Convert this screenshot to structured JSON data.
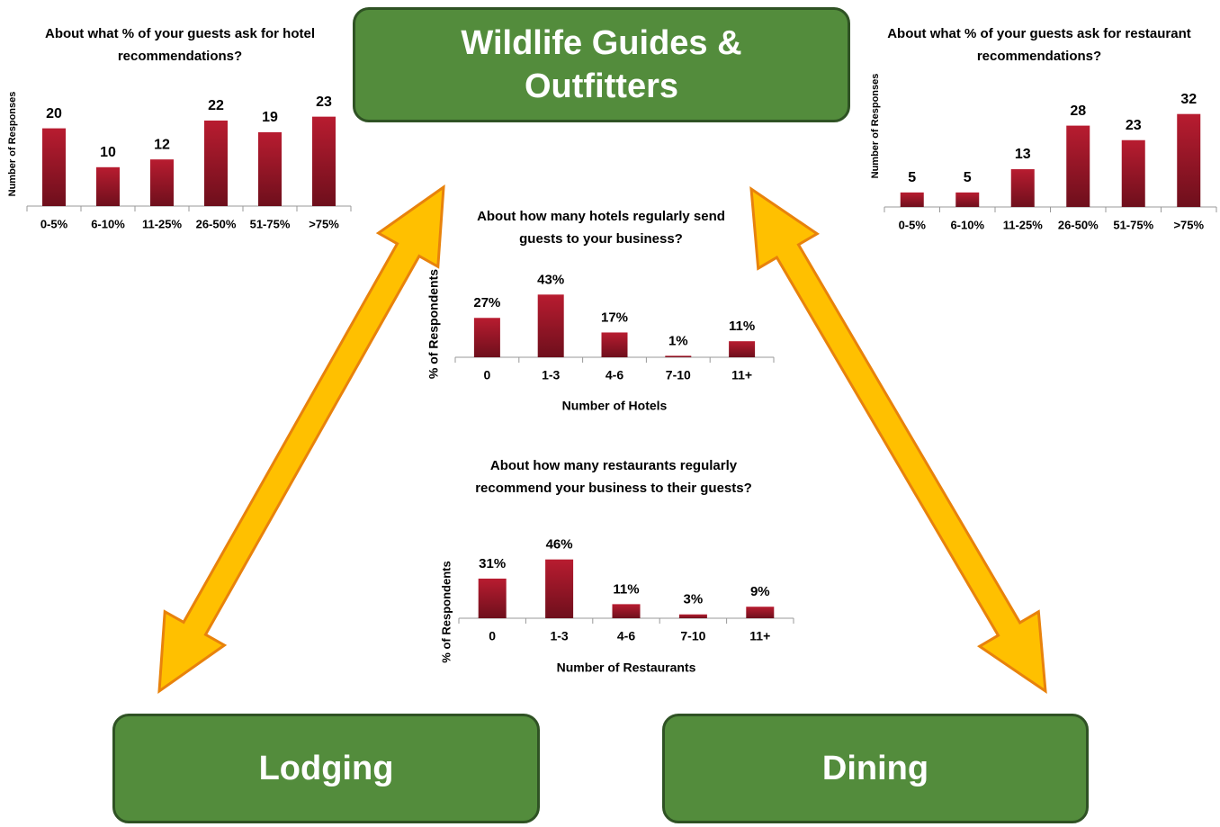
{
  "boxes": {
    "top": "Wildlife Guides & Outfitters",
    "left": "Lodging",
    "right": "Dining"
  },
  "chart_data": [
    {
      "type": "bar",
      "title": "About what % of your guests ask for hotel recommendations?",
      "y_label": "Number of Responses",
      "categories": [
        "0-5%",
        "6-10%",
        "11-25%",
        "26-50%",
        "51-75%",
        ">75%"
      ],
      "values": [
        20,
        10,
        12,
        22,
        19,
        23
      ],
      "ylim": [
        0,
        25
      ],
      "color": "#a01828"
    },
    {
      "type": "bar",
      "title": "About what % of your guests ask for restaurant recommendations?",
      "y_label": "Number of Responses",
      "categories": [
        "0-5%",
        "6-10%",
        "11-25%",
        "26-50%",
        "51-75%",
        ">75%"
      ],
      "values": [
        5,
        5,
        13,
        28,
        23,
        32
      ],
      "ylim": [
        0,
        35
      ],
      "color": "#a01828"
    },
    {
      "type": "bar",
      "title": "About how many hotels regularly send guests to your business?",
      "y_label": "% of Respondents",
      "x_label": "Number of Hotels",
      "categories": [
        "0",
        "1-3",
        "4-6",
        "7-10",
        "11+"
      ],
      "values": [
        27,
        43,
        17,
        1,
        11
      ],
      "value_labels": [
        "27%",
        "43%",
        "17%",
        "1%",
        "11%"
      ],
      "ylim": [
        0,
        50
      ],
      "color": "#a01828"
    },
    {
      "type": "bar",
      "title": "About how many restaurants regularly recommend your business to their guests?",
      "y_label": "% of Respondents",
      "x_label": "Number of Restaurants",
      "categories": [
        "0",
        "1-3",
        "4-6",
        "7-10",
        "11+"
      ],
      "values": [
        31,
        46,
        11,
        3,
        9
      ],
      "value_labels": [
        "31%",
        "46%",
        "11%",
        "3%",
        "9%"
      ],
      "ylim": [
        0,
        50
      ],
      "color": "#a01828"
    }
  ]
}
